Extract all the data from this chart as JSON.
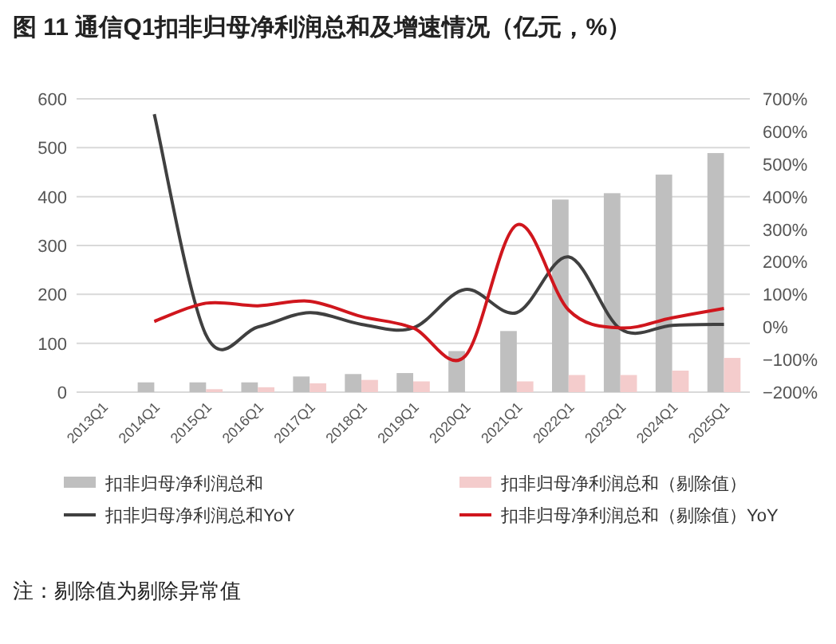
{
  "chart_data": {
    "type": "bar",
    "title": "图 11  通信Q1扣非归母净利润总和及增速情况（亿元，%）",
    "categories": [
      "2013Q1",
      "2014Q1",
      "2015Q1",
      "2016Q1",
      "2017Q1",
      "2018Q1",
      "2019Q1",
      "2020Q1",
      "2021Q1",
      "2022Q1",
      "2023Q1",
      "2024Q1",
      "2025Q1"
    ],
    "series": [
      {
        "name": "扣非归母净利润总和",
        "color": "#bfbfbf",
        "values": [
          0,
          20,
          20,
          20,
          32,
          37,
          39,
          84,
          125,
          394,
          407,
          445,
          489
        ]
      },
      {
        "name": "扣非归母净利润总和（剔除值）",
        "color": "#f4cccc",
        "values": [
          0,
          null,
          6,
          10,
          18,
          25,
          22,
          null,
          22,
          35,
          35,
          44,
          70
        ]
      },
      {
        "name": "扣非归母净利润总和YoY",
        "color": "#404040",
        "type": "line",
        "axis": "y2",
        "values": [
          null,
          653,
          -25,
          0,
          44,
          8,
          -3,
          115,
          44,
          215,
          -6,
          5,
          8
        ]
      },
      {
        "name": "扣非归母净利润总和（剔除值）YoY",
        "color": "#d0161d",
        "type": "line",
        "axis": "y2",
        "values": [
          null,
          17,
          73,
          65,
          79,
          32,
          -3,
          -90,
          313,
          52,
          -3,
          28,
          57
        ]
      }
    ],
    "ylim": [
      0,
      600
    ],
    "yticks": [
      0,
      100,
      200,
      300,
      400,
      500,
      600
    ],
    "y2lim": [
      -200,
      700
    ],
    "y2ticks": [
      {
        "value": -200,
        "label": "−200%"
      },
      {
        "value": -100,
        "label": "−100%"
      },
      {
        "value": 0,
        "label": "0%"
      },
      {
        "value": 100,
        "label": "100%"
      },
      {
        "value": 200,
        "label": "200%"
      },
      {
        "value": 300,
        "label": "300%"
      },
      {
        "value": 400,
        "label": "400%"
      },
      {
        "value": 500,
        "label": "500%"
      },
      {
        "value": 600,
        "label": "600%"
      },
      {
        "value": 700,
        "label": "700%"
      }
    ],
    "grid": "y",
    "legend": "bottom",
    "marker": "none",
    "line_style": "solid",
    "annotations": [
      "注：剔除值为剔除异常值"
    ]
  }
}
